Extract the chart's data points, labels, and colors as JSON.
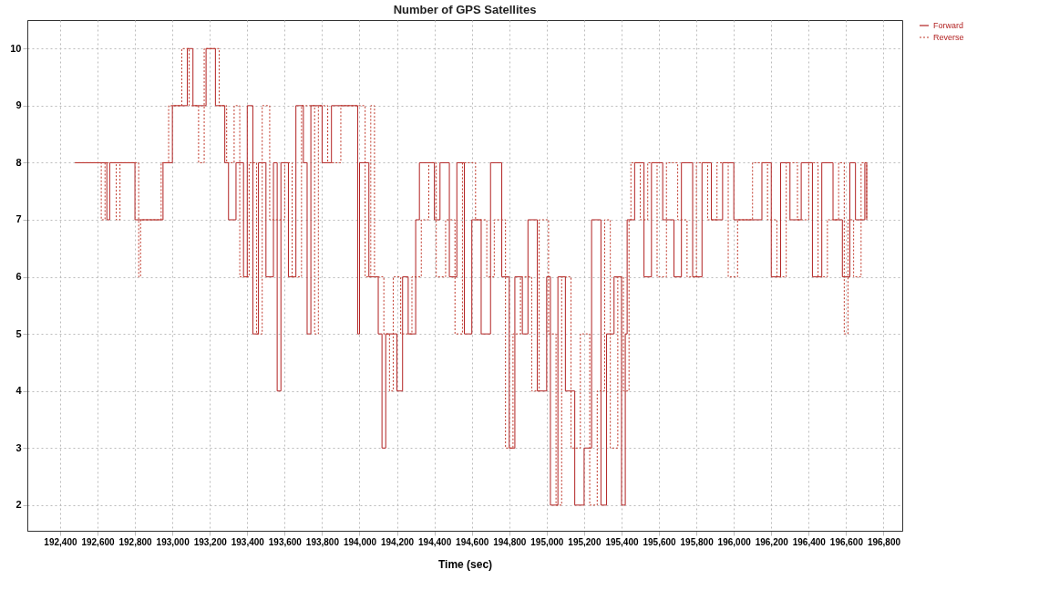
{
  "chart_data": {
    "type": "step",
    "title": "Number of GPS Satellites",
    "xlabel": "Time (sec)",
    "xlim": [
      192225,
      196900
    ],
    "ylim": [
      1.55,
      10.5
    ],
    "xticks": [
      {
        "value": 192400,
        "label": "192,400"
      },
      {
        "value": 192600,
        "label": "192,600"
      },
      {
        "value": 192800,
        "label": "192,800"
      },
      {
        "value": 193000,
        "label": "193,000"
      },
      {
        "value": 193200,
        "label": "193,200"
      },
      {
        "value": 193400,
        "label": "193,400"
      },
      {
        "value": 193600,
        "label": "193,600"
      },
      {
        "value": 193800,
        "label": "193,800"
      },
      {
        "value": 194000,
        "label": "194,000"
      },
      {
        "value": 194200,
        "label": "194,200"
      },
      {
        "value": 194400,
        "label": "194,400"
      },
      {
        "value": 194600,
        "label": "194,600"
      },
      {
        "value": 194800,
        "label": "194,800"
      },
      {
        "value": 195000,
        "label": "195,000"
      },
      {
        "value": 195200,
        "label": "195,200"
      },
      {
        "value": 195400,
        "label": "195,400"
      },
      {
        "value": 195600,
        "label": "195,600"
      },
      {
        "value": 195800,
        "label": "195,800"
      },
      {
        "value": 196000,
        "label": "196,000"
      },
      {
        "value": 196200,
        "label": "196,200"
      },
      {
        "value": 196400,
        "label": "196,400"
      },
      {
        "value": 196600,
        "label": "196,600"
      },
      {
        "value": 196800,
        "label": "196,800"
      }
    ],
    "yticks": [
      2,
      3,
      4,
      5,
      6,
      7,
      8,
      9,
      10
    ],
    "grid": true,
    "legend": "top right",
    "marker": "none",
    "series": [
      {
        "name": "Forward",
        "color": "#b22222",
        "line_style": "solid",
        "x": [
          192480,
          192650,
          192665,
          192800,
          192950,
          193000,
          193080,
          193110,
          193180,
          193230,
          193280,
          193300,
          193340,
          193380,
          193400,
          193430,
          193460,
          193500,
          193540,
          193560,
          193580,
          193620,
          193660,
          193700,
          193720,
          193740,
          193800,
          193850,
          193990,
          194000,
          194050,
          194100,
          194120,
          194140,
          194200,
          194230,
          194260,
          194300,
          194320,
          194400,
          194430,
          194480,
          194520,
          194560,
          194600,
          194650,
          194700,
          194760,
          194800,
          194830,
          194870,
          194900,
          194950,
          195000,
          195020,
          195060,
          195100,
          195150,
          195200,
          195240,
          195290,
          195320,
          195360,
          195400,
          195420,
          195430,
          195470,
          195520,
          195560,
          195620,
          195680,
          195720,
          195780,
          195830,
          195880,
          195940,
          196000,
          196150,
          196200,
          196250,
          196300,
          196360,
          196420,
          196470,
          196530,
          196580,
          196620,
          196650,
          196700,
          196710
        ],
        "values": [
          8,
          7,
          8,
          7,
          8,
          9,
          10,
          9,
          10,
          9,
          8,
          7,
          8,
          6,
          9,
          5,
          8,
          6,
          8,
          4,
          8,
          6,
          9,
          8,
          5,
          9,
          8,
          9,
          5,
          8,
          6,
          5,
          3,
          5,
          4,
          6,
          5,
          7,
          8,
          7,
          8,
          6,
          8,
          5,
          7,
          5,
          8,
          6,
          3,
          6,
          5,
          7,
          4,
          6,
          2,
          6,
          4,
          2,
          3,
          7,
          2,
          5,
          6,
          2,
          5,
          7,
          8,
          6,
          8,
          7,
          6,
          8,
          6,
          8,
          7,
          8,
          7,
          8,
          6,
          8,
          7,
          8,
          6,
          8,
          7,
          6,
          8,
          7,
          8,
          7
        ]
      },
      {
        "name": "Reverse",
        "color": "#c0392b",
        "line_style": "dotted",
        "x": [
          192480,
          192620,
          192640,
          192700,
          192720,
          192820,
          192830,
          192940,
          192980,
          193050,
          193090,
          193140,
          193170,
          193250,
          193290,
          193330,
          193360,
          193410,
          193450,
          193480,
          193520,
          193600,
          193640,
          193690,
          193760,
          193780,
          193830,
          193900,
          194030,
          194060,
          194080,
          194130,
          194160,
          194180,
          194220,
          194280,
          194330,
          194370,
          194410,
          194460,
          194510,
          194550,
          194620,
          194680,
          194720,
          194780,
          194820,
          194860,
          194920,
          194960,
          195010,
          195050,
          195080,
          195130,
          195180,
          195230,
          195270,
          195310,
          195340,
          195380,
          195410,
          195440,
          195450,
          195500,
          195540,
          195590,
          195640,
          195700,
          195750,
          195800,
          195860,
          195910,
          195970,
          196020,
          196100,
          196180,
          196230,
          196280,
          196340,
          196400,
          196450,
          196500,
          196560,
          196590,
          196610,
          196640,
          196680,
          196710
        ],
        "values": [
          8,
          7,
          8,
          7,
          8,
          6,
          7,
          8,
          9,
          10,
          9,
          8,
          10,
          9,
          8,
          9,
          6,
          8,
          5,
          9,
          7,
          8,
          6,
          9,
          5,
          9,
          8,
          9,
          6,
          9,
          6,
          5,
          4,
          6,
          5,
          6,
          7,
          8,
          6,
          7,
          5,
          8,
          7,
          6,
          7,
          3,
          5,
          6,
          4,
          7,
          5,
          2,
          6,
          3,
          5,
          2,
          4,
          7,
          3,
          6,
          4,
          7,
          8,
          7,
          8,
          6,
          8,
          7,
          6,
          8,
          7,
          8,
          6,
          7,
          8,
          7,
          6,
          8,
          7,
          8,
          6,
          7,
          8,
          5,
          7,
          6,
          8,
          7
        ]
      }
    ]
  }
}
